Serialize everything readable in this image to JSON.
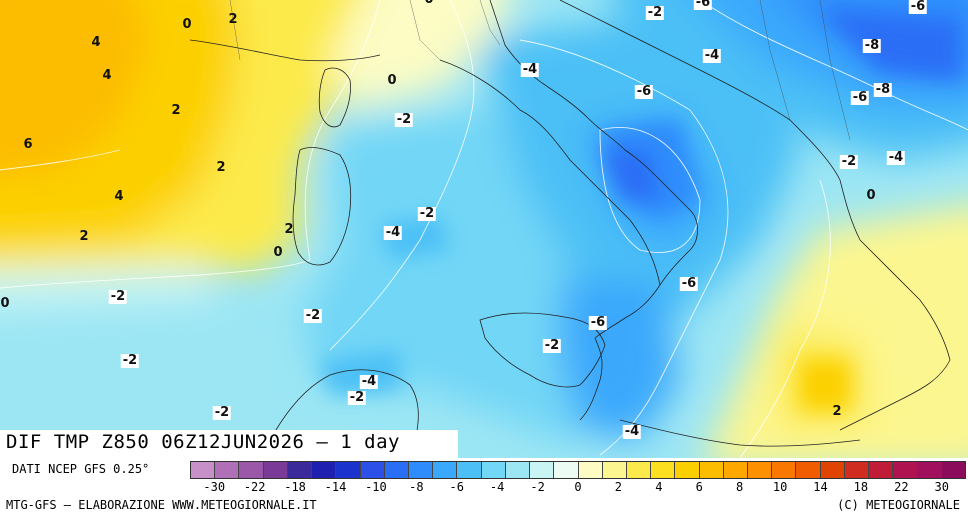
{
  "title": "DIF TMP Z850 06Z12JUN2026 – 1 day",
  "source_line": "DATI NCEP GFS 0.25°",
  "credit_left": "MTG-GFS – ELABORAZIONE WWW.METEOGIORNALE.IT",
  "credit_right": "(C) METEOGIORNALE",
  "legend": {
    "tick_labels": [
      "-30",
      "-22",
      "-18",
      "-14",
      "-10",
      "-8",
      "-6",
      "-4",
      "-2",
      "0",
      "2",
      "4",
      "6",
      "8",
      "10",
      "14",
      "18",
      "22",
      "30"
    ],
    "colors": [
      "#c890c8",
      "#b070b8",
      "#9c58a8",
      "#7a3a98",
      "#3a2a9a",
      "#2020b0",
      "#1c32cc",
      "#2c50e8",
      "#2a6ef6",
      "#2f8cfc",
      "#3aa8fc",
      "#4cc0f6",
      "#72d6f6",
      "#9ce6f4",
      "#c8f4f4",
      "#ecfcf4",
      "#fcfcc4",
      "#fcf690",
      "#fcea4c",
      "#fce020",
      "#fcd000",
      "#fcbc00",
      "#fca800",
      "#fc9000",
      "#f87800",
      "#f05c00",
      "#e04400",
      "#d02c20",
      "#c01c38",
      "#b01450",
      "#a0105c",
      "#8c0c5c"
    ]
  },
  "isoline_labels": [
    {
      "text": "0"
    },
    {
      "text": "2"
    },
    {
      "text": "4"
    },
    {
      "text": "4"
    },
    {
      "text": "2"
    },
    {
      "text": "6"
    },
    {
      "text": "2"
    },
    {
      "text": "4"
    },
    {
      "text": "2"
    },
    {
      "text": "2"
    },
    {
      "text": "0"
    },
    {
      "text": "0"
    },
    {
      "text": "0"
    },
    {
      "text": "-2"
    },
    {
      "text": "-2"
    },
    {
      "text": "-4"
    },
    {
      "text": "-2"
    },
    {
      "text": "-2"
    },
    {
      "text": "-2"
    },
    {
      "text": "-2"
    },
    {
      "text": "-4"
    },
    {
      "text": "-2"
    },
    {
      "text": "-2"
    },
    {
      "text": "-4"
    },
    {
      "text": "-6"
    },
    {
      "text": "-6"
    },
    {
      "text": "-6"
    },
    {
      "text": "-4"
    },
    {
      "text": "-2"
    },
    {
      "text": "-4"
    },
    {
      "text": "-6"
    },
    {
      "text": "-6"
    },
    {
      "text": "-8"
    },
    {
      "text": "-8"
    },
    {
      "text": "-6"
    },
    {
      "text": "-2"
    },
    {
      "text": "-4"
    },
    {
      "text": "0"
    },
    {
      "text": "2"
    },
    {
      "text": "0"
    }
  ]
}
